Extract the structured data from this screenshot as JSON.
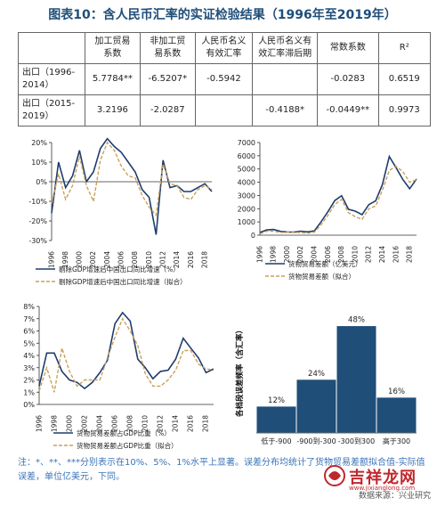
{
  "title": "图表10：含人民币汇率的实证检验结果（1996年至2019年）",
  "table": {
    "headers": [
      "",
      "加工贸易\n系数",
      "非加工贸\n易系数",
      "人民币名义\n有效汇率",
      "人民币名义有\n效汇率滞后期",
      "常数系数",
      "R²"
    ],
    "rows": [
      [
        "出口（1996-\n2014）",
        "5.7784**",
        "-6.5207*",
        "-0.5942",
        "",
        "-0.0283",
        "0.6519"
      ],
      [
        "出口（2015-\n2019）",
        "3.2196",
        "-2.0287",
        "",
        "-0.4188*",
        "-0.0449**",
        "0.9973"
      ]
    ]
  },
  "colors": {
    "navy": "#1f3d6e",
    "gold": "#c9a15b",
    "bar": "#1f4e79"
  },
  "chart_data": [
    {
      "type": "line",
      "x": [
        1996,
        1997,
        1998,
        1999,
        2000,
        2001,
        2002,
        2003,
        2004,
        2005,
        2006,
        2007,
        2008,
        2009,
        2010,
        2011,
        2012,
        2013,
        2014,
        2015,
        2016,
        2017,
        2018,
        2019
      ],
      "xticks": [
        "1996",
        "1998",
        "2000",
        "2002",
        "2004",
        "2006",
        "2008",
        "2010",
        "2012",
        "2014",
        "2016",
        "2018"
      ],
      "ylim": [
        -30,
        20
      ],
      "yticks": [
        "20%",
        "10%",
        "0%",
        "-10%",
        "-20%",
        "-30%"
      ],
      "ytick_values": [
        20,
        10,
        0,
        -10,
        -20,
        -30
      ],
      "series": [
        {
          "name": "剔除GDP增速后中国出口同比增速（%）",
          "values": [
            -16,
            10,
            -3,
            3,
            16,
            0,
            5,
            17,
            22,
            18,
            15,
            10,
            5,
            -4,
            -8,
            -27,
            11,
            -3,
            -2,
            -5,
            -5,
            -3,
            -1,
            -5
          ]
        },
        {
          "name": "剔除GDP增速后中国出口同比增速（拟合）",
          "values": [
            -11,
            4,
            -9,
            -2,
            13,
            -2,
            -10,
            11,
            20,
            16,
            8,
            3,
            2,
            -7,
            -13,
            -17,
            9,
            -1,
            -2,
            -8,
            -9,
            -4,
            -2,
            -4
          ]
        }
      ]
    },
    {
      "type": "line",
      "x": [
        1996,
        1997,
        1998,
        1999,
        2000,
        2001,
        2002,
        2003,
        2004,
        2005,
        2006,
        2007,
        2008,
        2009,
        2010,
        2011,
        2012,
        2013,
        2014,
        2015,
        2016,
        2017,
        2018,
        2019
      ],
      "xticks": [
        "1996",
        "1998",
        "2000",
        "2002",
        "2004",
        "2006",
        "2008",
        "2010",
        "2012",
        "2014",
        "2016",
        "2018"
      ],
      "ylim": [
        0,
        7000
      ],
      "yticks": [
        "7000",
        "6000",
        "5000",
        "4000",
        "3000",
        "2000",
        "1000",
        "0"
      ],
      "ytick_values": [
        7000,
        6000,
        5000,
        4000,
        3000,
        2000,
        1000,
        0
      ],
      "series": [
        {
          "name": "货物贸易差额（亿美元）",
          "values": [
            200,
            400,
            430,
            290,
            240,
            230,
            300,
            250,
            320,
            1020,
            1780,
            2620,
            2980,
            1960,
            1820,
            1550,
            2310,
            2600,
            3830,
            5940,
            5100,
            4200,
            3510,
            4250
          ]
        },
        {
          "name": "货物贸易差额（拟合）",
          "values": [
            100,
            300,
            300,
            200,
            220,
            210,
            200,
            150,
            230,
            800,
            1500,
            2320,
            2700,
            1700,
            1400,
            1200,
            2000,
            2200,
            3400,
            4900,
            5200,
            4800,
            4000,
            4200
          ]
        }
      ]
    },
    {
      "type": "line",
      "x": [
        1996,
        1997,
        1998,
        1999,
        2000,
        2001,
        2002,
        2003,
        2004,
        2005,
        2006,
        2007,
        2008,
        2009,
        2010,
        2011,
        2012,
        2013,
        2014,
        2015,
        2016,
        2017,
        2018,
        2019
      ],
      "xticks": [
        "1996",
        "1998",
        "2000",
        "2002",
        "2004",
        "2006",
        "2008",
        "2010",
        "2012",
        "2014",
        "2016",
        "2018"
      ],
      "ylim": [
        0,
        8
      ],
      "yticks": [
        "8%",
        "7%",
        "6%",
        "5%",
        "4%",
        "3%",
        "2%",
        "1%",
        "0%"
      ],
      "ytick_values": [
        8,
        7,
        6,
        5,
        4,
        3,
        2,
        1,
        0
      ],
      "series": [
        {
          "name": "货物贸易差额占GDP比重（%）",
          "values": [
            1.5,
            4.2,
            4.2,
            2.7,
            2.0,
            1.8,
            1.3,
            1.8,
            2.6,
            3.6,
            6.6,
            7.5,
            6.8,
            3.7,
            3.0,
            2.1,
            2.7,
            2.8,
            3.7,
            5.4,
            4.6,
            3.8,
            2.6,
            2.9
          ]
        },
        {
          "name": "货物贸易差额占GDP比重（拟合）",
          "values": [
            1.1,
            3.0,
            1.0,
            4.6,
            2.7,
            1.5,
            2.0,
            2.0,
            2.0,
            3.8,
            5.5,
            7.0,
            6.0,
            4.8,
            2.5,
            1.5,
            1.5,
            2.0,
            2.8,
            4.4,
            4.4,
            3.3,
            2.9,
            2.8
          ]
        }
      ]
    },
    {
      "type": "bar",
      "categories": [
        "低于-900",
        "-900到-300",
        "-300到300",
        "高于300"
      ],
      "values": [
        12,
        24,
        48,
        16
      ],
      "labels": [
        "12%",
        "24%",
        "48%",
        "16%"
      ],
      "ylabel": "各档段误差频率（含汇率）",
      "ylim": [
        0,
        55
      ]
    }
  ],
  "note": "注：*、**、***分别表示在10%、5%、1%水平上显著。误差分布均统计了货物贸易差额拟合值-实际值误差，单位亿美元，下同。",
  "source": "数据来源：兴业研究",
  "watermark": {
    "brand": "吉祥龙网",
    "url": "www.jixianglong.com"
  }
}
